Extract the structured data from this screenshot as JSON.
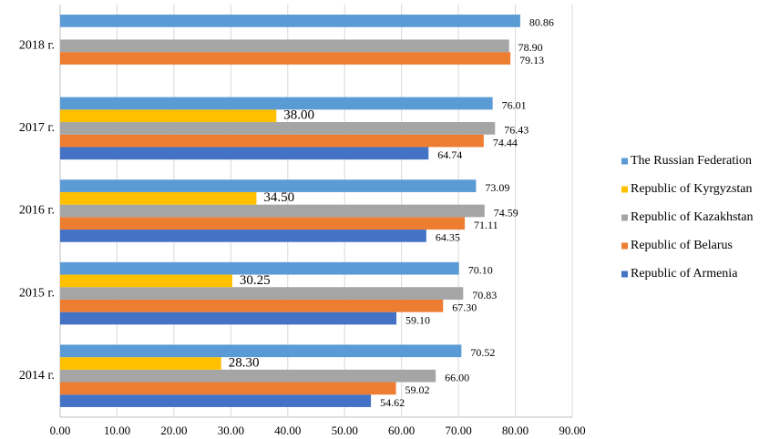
{
  "chart_data": {
    "type": "hbar",
    "categories": [
      "2014 г.",
      "2015 г.",
      "2016 г.",
      "2017 г.",
      "2018 г."
    ],
    "series": [
      {
        "name": "Republic of Armenia",
        "color": "#4472c4",
        "values": [
          54.62,
          59.1,
          64.35,
          64.74,
          null
        ],
        "value_labels": [
          "54.62",
          "59.10",
          "64.35",
          "64.74",
          null
        ]
      },
      {
        "name": "Republic of Belarus",
        "color": "#ed7d31",
        "values": [
          59.02,
          67.3,
          71.11,
          74.44,
          79.13
        ],
        "value_labels": [
          "59.02",
          "67.30",
          "71.11",
          "74.44",
          "79.13"
        ]
      },
      {
        "name": "Republic of Kazakhstan",
        "color": "#a5a5a5",
        "values": [
          66.0,
          70.83,
          74.59,
          76.43,
          78.9
        ],
        "value_labels": [
          "66.00",
          "70.83",
          "74.59",
          "76.43",
          "78.90"
        ]
      },
      {
        "name": "Republic of Kyrgyzstan",
        "color": "#ffc000",
        "values": [
          28.3,
          30.25,
          34.5,
          38.0,
          null
        ],
        "value_labels": [
          "28.30",
          "30.25",
          "34.50",
          "38.00",
          null
        ]
      },
      {
        "name": "The Russian Federation",
        "color": "#5b9bd5",
        "values": [
          70.52,
          70.1,
          73.09,
          76.01,
          80.86
        ],
        "value_labels": [
          "70.52",
          "70.10",
          "73.09",
          "76.01",
          "80.86"
        ]
      }
    ],
    "xlim": [
      0,
      90
    ],
    "xticks": [
      {
        "value": 0,
        "label": "0.00"
      },
      {
        "value": 10,
        "label": "10.00"
      },
      {
        "value": 20,
        "label": "20.00"
      },
      {
        "value": 30,
        "label": "30.00"
      },
      {
        "value": 40,
        "label": "40.00"
      },
      {
        "value": 50,
        "label": "50.00"
      },
      {
        "value": 60,
        "label": "60.00"
      },
      {
        "value": 70,
        "label": "70.00"
      },
      {
        "value": 80,
        "label": "80.00"
      },
      {
        "value": 90,
        "label": "90.00"
      }
    ],
    "grid": true,
    "legend": "right"
  }
}
